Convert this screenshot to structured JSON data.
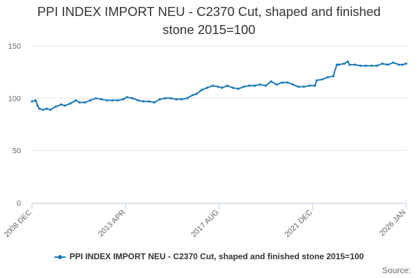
{
  "chart_data": {
    "type": "line",
    "title": "PPI INDEX IMPORT NEU - C2370 Cut, shaped and finished\nstone 2015=100",
    "xlabel": "",
    "ylabel": "",
    "ylim": [
      0,
      150
    ],
    "yticks": [
      0,
      50,
      100,
      150
    ],
    "xlim": [
      "2008-12",
      "2026-01"
    ],
    "xticks": [
      "2008 DEC",
      "2013 APR",
      "2017 AUG",
      "2021 DEC",
      "2026 JAN"
    ],
    "grid": "horizontal",
    "legend_position": "bottom",
    "color": "#1a7ab8",
    "series": [
      {
        "name": "PPI INDEX IMPORT NEU - C2370 Cut, shaped and finished stone 2015=100",
        "x": [
          "2008-12",
          "2009-02",
          "2009-03",
          "2009-04",
          "2009-06",
          "2009-08",
          "2009-10",
          "2010-01",
          "2010-04",
          "2010-06",
          "2010-09",
          "2010-12",
          "2011-02",
          "2011-05",
          "2011-08",
          "2011-11",
          "2012-02",
          "2012-05",
          "2012-08",
          "2012-11",
          "2013-02",
          "2013-04",
          "2013-07",
          "2013-10",
          "2014-01",
          "2014-04",
          "2014-07",
          "2014-10",
          "2015-01",
          "2015-04",
          "2015-07",
          "2015-10",
          "2016-01",
          "2016-04",
          "2016-06",
          "2016-09",
          "2016-12",
          "2017-03",
          "2017-06",
          "2017-08",
          "2017-11",
          "2018-02",
          "2018-05",
          "2018-08",
          "2018-11",
          "2019-02",
          "2019-05",
          "2019-08",
          "2019-11",
          "2020-02",
          "2020-05",
          "2020-08",
          "2020-11",
          "2021-02",
          "2021-05",
          "2021-08",
          "2021-11",
          "2021-12",
          "2022-03",
          "2022-06",
          "2022-09",
          "2022-11",
          "2022-12",
          "2023-03",
          "2023-05",
          "2023-06",
          "2023-09",
          "2023-12",
          "2024-03",
          "2024-06",
          "2024-09",
          "2024-12",
          "2025-03",
          "2025-06",
          "2025-09",
          "2025-11",
          "2026-01"
        ],
        "values": [
          97,
          98,
          93,
          90,
          89,
          90,
          89,
          92,
          94,
          93,
          95,
          98,
          96,
          96,
          98,
          100,
          99,
          98,
          98,
          98,
          99,
          101,
          100,
          98,
          97,
          97,
          96,
          99,
          100,
          100,
          99,
          99,
          100,
          103,
          104,
          108,
          110,
          112,
          111,
          110,
          112,
          110,
          109,
          111,
          112,
          112,
          113,
          112,
          116,
          113,
          115,
          115,
          113,
          111,
          111,
          112,
          112,
          117,
          118,
          120,
          121,
          132,
          132,
          133,
          135,
          132,
          132,
          131,
          131,
          131,
          131,
          133,
          132,
          134,
          132,
          132,
          133
        ]
      }
    ],
    "source_label": "Source:"
  }
}
